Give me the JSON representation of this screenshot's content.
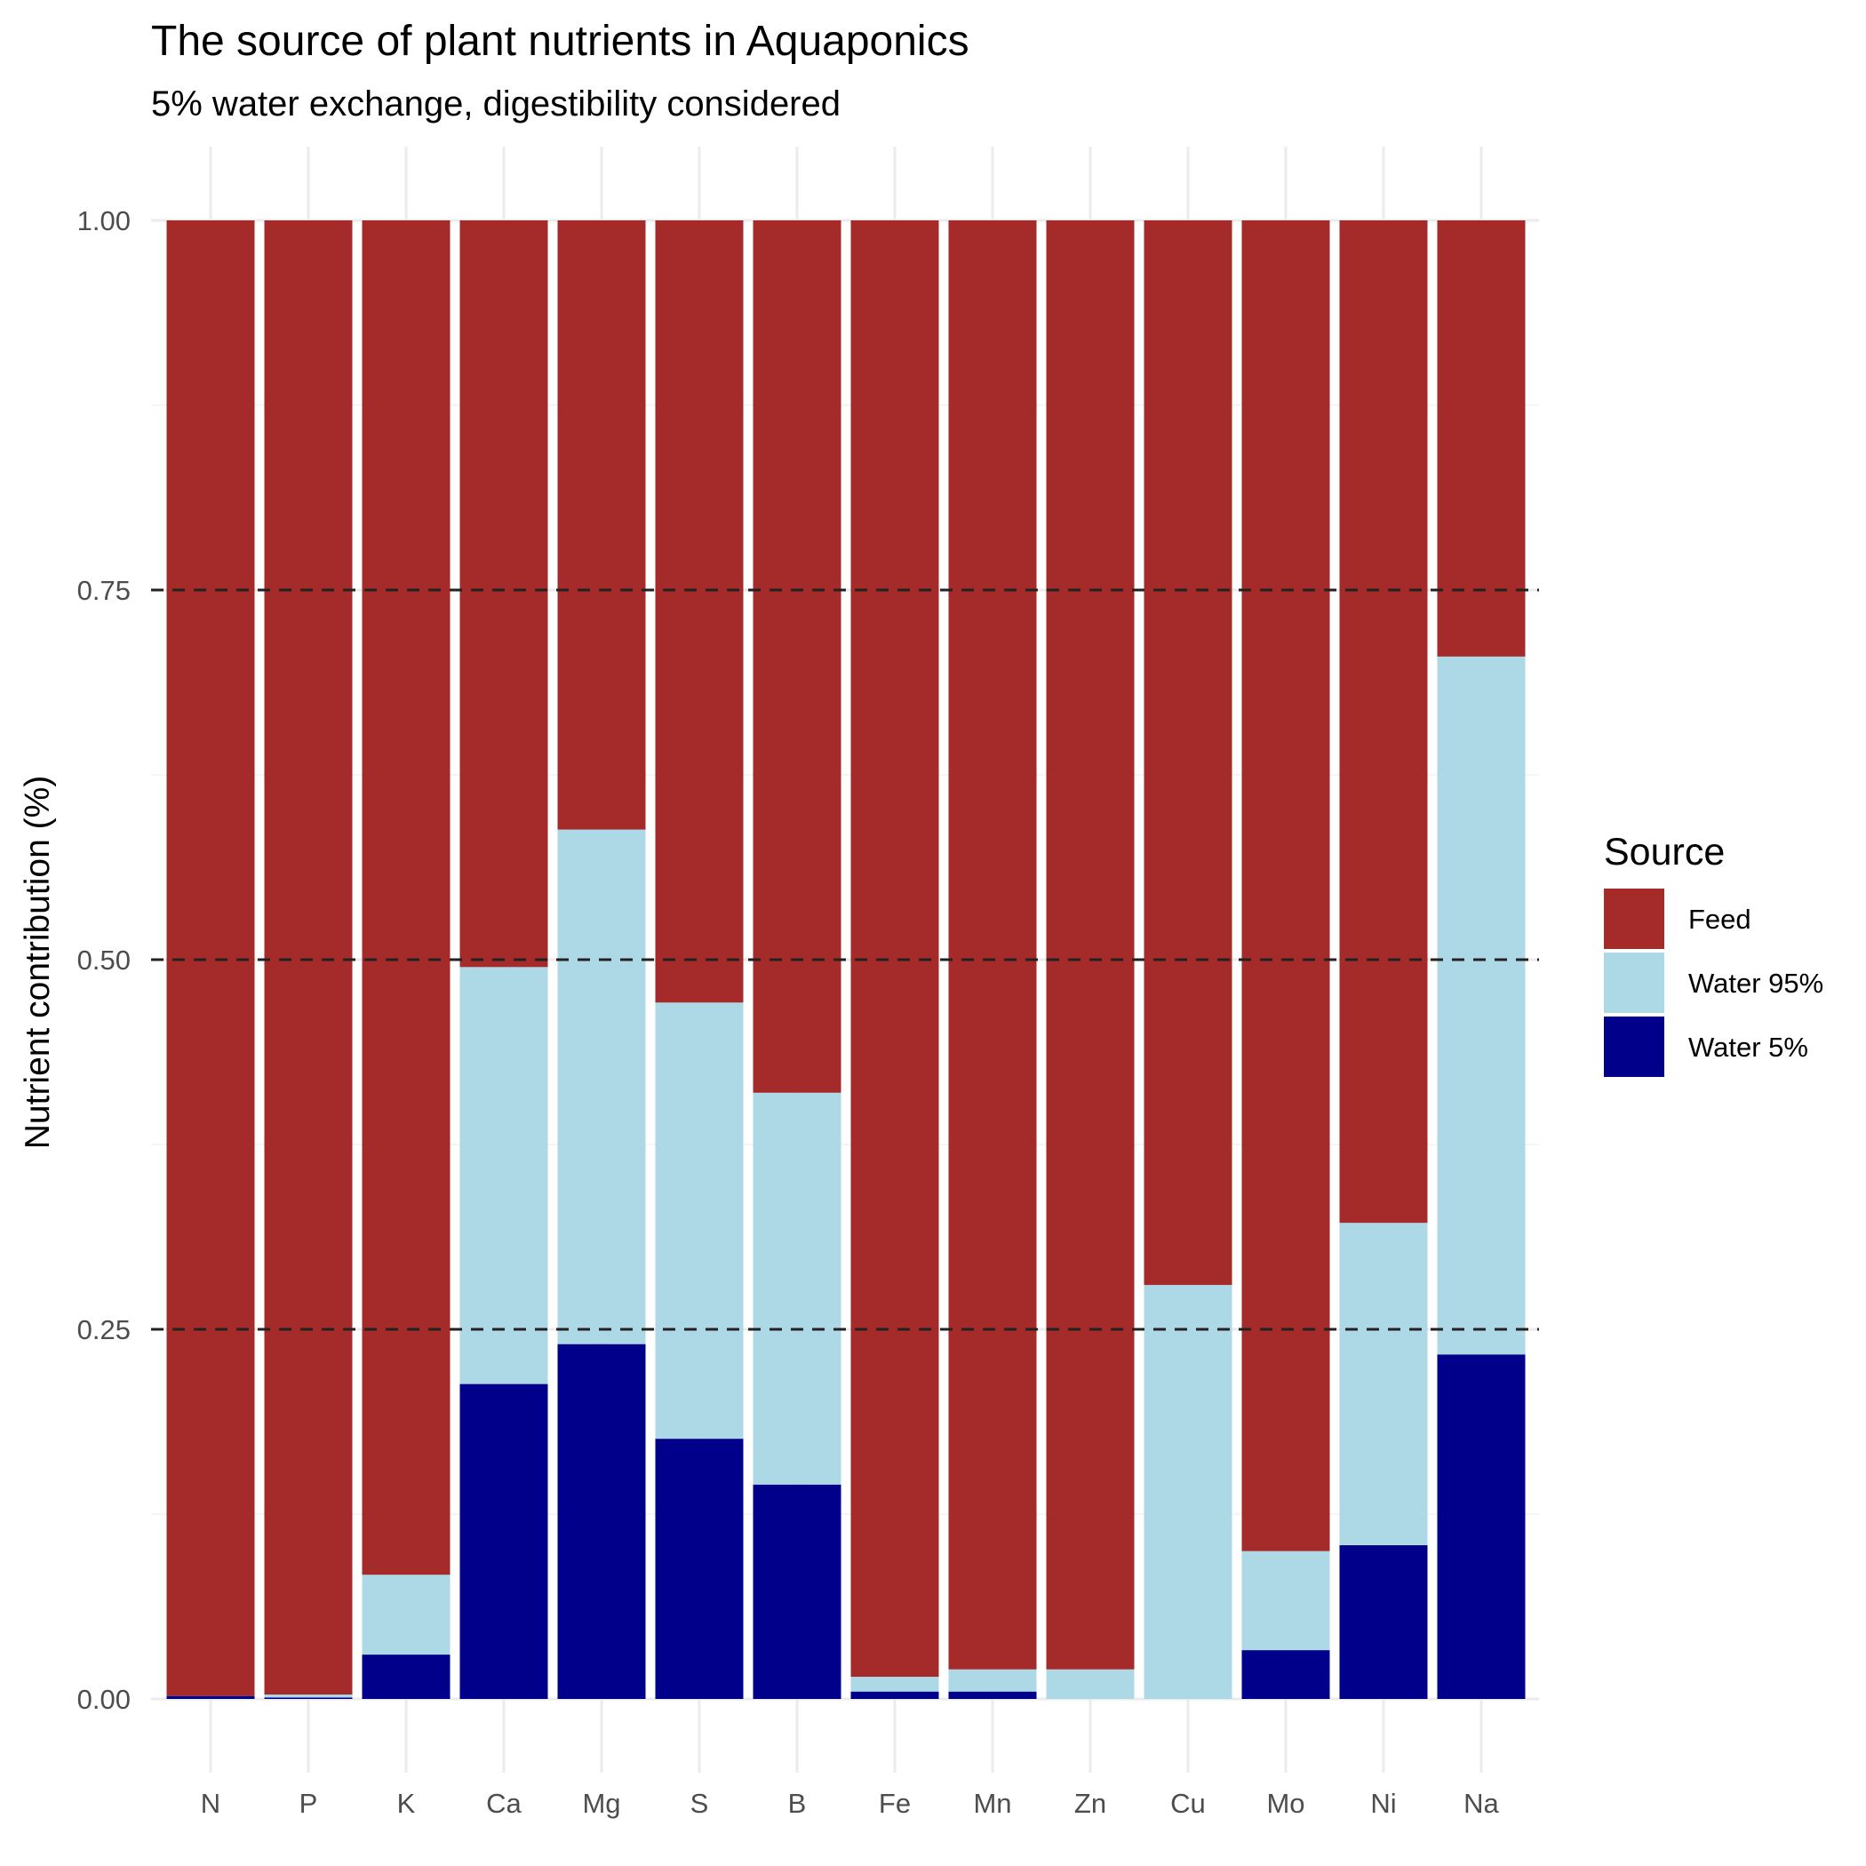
{
  "chart_data": {
    "type": "bar",
    "stacked": true,
    "title": "The source of plant nutrients in Aquaponics",
    "subtitle": "5% water exchange, digestibility considered",
    "xlabel": "",
    "ylabel": "Nutrient contribution (%)",
    "ylim": [
      0,
      1
    ],
    "yticks": [
      "0.00",
      "0.25",
      "0.50",
      "0.75",
      "1.00"
    ],
    "reference_lines": [
      0.25,
      0.5,
      0.75
    ],
    "grid": true,
    "legend": {
      "title": "Source",
      "position": "right"
    },
    "categories": [
      "N",
      "P",
      "K",
      "Ca",
      "Mg",
      "S",
      "B",
      "Fe",
      "Mn",
      "Zn",
      "Cu",
      "Mo",
      "Ni",
      "Na"
    ],
    "series": [
      {
        "name": "Water 5%",
        "color": "#00008B",
        "values": [
          0.002,
          0.001,
          0.03,
          0.213,
          0.24,
          0.176,
          0.145,
          0.005,
          0.005,
          0.0,
          0.0,
          0.033,
          0.104,
          0.233
        ]
      },
      {
        "name": "Water 95%",
        "color": "#ADD8E6",
        "values": [
          0.0,
          0.002,
          0.054,
          0.282,
          0.348,
          0.295,
          0.265,
          0.01,
          0.015,
          0.02,
          0.28,
          0.067,
          0.218,
          0.472
        ]
      },
      {
        "name": "Feed",
        "color": "#A52A2A",
        "values": [
          0.998,
          0.997,
          0.916,
          0.505,
          0.412,
          0.529,
          0.59,
          0.985,
          0.98,
          0.98,
          0.72,
          0.9,
          0.678,
          0.295
        ]
      }
    ],
    "legend_order": [
      "Feed",
      "Water 95%",
      "Water 5%"
    ]
  }
}
